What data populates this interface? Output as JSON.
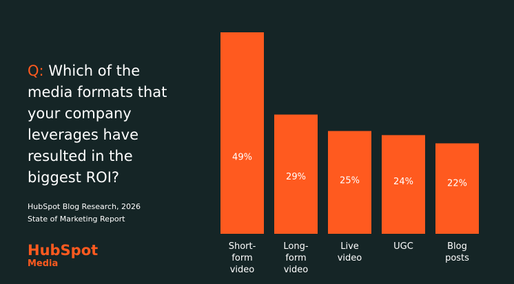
{
  "chart_data": {
    "type": "bar",
    "title_prefix": "Q:",
    "title": "Which of the media formats that your company leverages have resulted in the biggest ROI?",
    "categories": [
      "Short-\nform\nvideo",
      "Long-\nform\nvideo",
      "Live\nvideo",
      "UGC",
      "Blog\nposts"
    ],
    "values": [
      49,
      29,
      25,
      24,
      22
    ],
    "value_labels": [
      "49%",
      "29%",
      "25%",
      "24%",
      "22%"
    ],
    "color": "#ff5a1f",
    "source": [
      "HubSpot Blog Research, 2026",
      "State of Marketing Report"
    ]
  },
  "logo": {
    "name": "HubSpot",
    "sub": "Media"
  }
}
